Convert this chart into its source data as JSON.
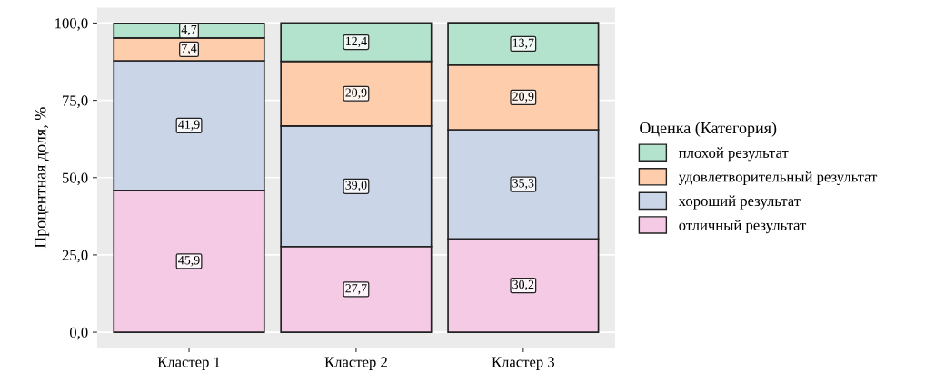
{
  "chart_data": {
    "type": "bar",
    "stacked": true,
    "ylabel": "Процентная доля, %",
    "legend_title": "Оценка (Категория)",
    "legend": "right",
    "grid": "y",
    "categories": [
      "Кластер 1",
      "Кластер 2",
      "Кластер 3"
    ],
    "ylim": [
      -5,
      105
    ],
    "yticks": [
      {
        "value": 0,
        "label": "0,0"
      },
      {
        "value": 25,
        "label": "25,0"
      },
      {
        "value": 50,
        "label": "50,0"
      },
      {
        "value": 75,
        "label": "75,0"
      },
      {
        "value": 100,
        "label": "100,0"
      }
    ],
    "series": [
      {
        "name": "отличный результат",
        "color": "#f4cae4",
        "values": [
          45.9,
          27.7,
          30.2
        ],
        "value_labels": [
          "45,9",
          "27,7",
          "30,2"
        ]
      },
      {
        "name": "хороший результат",
        "color": "#cbd5e8",
        "values": [
          41.9,
          39.0,
          35.3
        ],
        "value_labels": [
          "41,9",
          "39,0",
          "35,3"
        ]
      },
      {
        "name": "удовлетворительный результат",
        "color": "#fdcdac",
        "values": [
          7.4,
          20.9,
          20.9
        ],
        "value_labels": [
          "7,4",
          "20,9",
          "20,9"
        ]
      },
      {
        "name": "плохой результат",
        "color": "#b3e2cd",
        "values": [
          4.7,
          12.4,
          13.7
        ],
        "value_labels": [
          "4,7",
          "12,4",
          "13,7"
        ]
      }
    ]
  }
}
